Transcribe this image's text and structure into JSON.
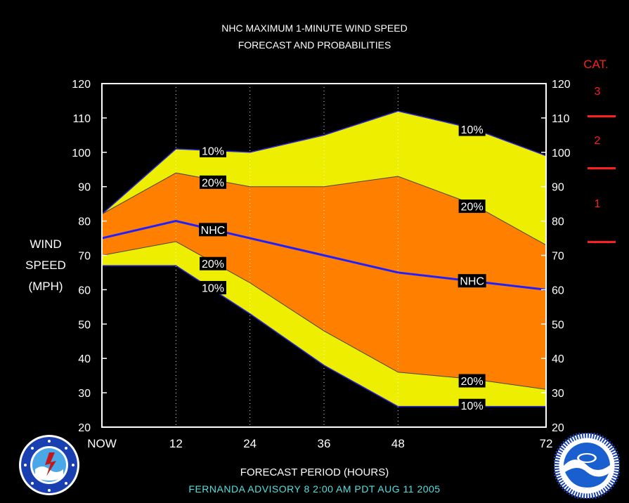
{
  "header": {
    "title": "NHC MAXIMUM 1-MINUTE WIND SPEED",
    "subtitle": "FORECAST AND PROBABILITIES"
  },
  "axes": {
    "ylabel_lines": [
      "WIND",
      "SPEED",
      "(MPH)"
    ],
    "xlabel": "FORECAST PERIOD (HOURS)"
  },
  "footer": {
    "advisory": "FERNANDA   ADVISORY  8 2:00 AM PDT AUG 11 2005"
  },
  "category_key": {
    "title": "CAT.",
    "labels": [
      "3",
      "2",
      "1"
    ],
    "color": "#ff1e1e"
  },
  "logos": [
    "noaa-nws-logo",
    "noaa-logo"
  ],
  "chart_data": {
    "type": "area",
    "title": "NHC MAXIMUM 1-MINUTE WIND SPEED",
    "subtitle": "FORECAST AND PROBABILITIES",
    "xlabel": "FORECAST PERIOD (HOURS)",
    "ylabel": "WIND SPEED (MPH)",
    "x": [
      0,
      12,
      24,
      36,
      48,
      60,
      72
    ],
    "x_tick_labels": [
      "NOW",
      "12",
      "24",
      "36",
      "48",
      "",
      "72"
    ],
    "xlim": [
      0,
      72
    ],
    "ylim": [
      20,
      120
    ],
    "y_ticks": [
      20,
      30,
      40,
      50,
      60,
      70,
      80,
      90,
      100,
      110,
      120
    ],
    "vertical_dotted_gridlines_at": [
      12,
      24,
      36,
      48
    ],
    "series": [
      {
        "name": "10%",
        "values": [
          82,
          101,
          100,
          105,
          112,
          107,
          99
        ],
        "color": "#eeee00"
      },
      {
        "name": "20%",
        "values": [
          82,
          94,
          90,
          90,
          93,
          85,
          73
        ],
        "color": "#ff7f00"
      },
      {
        "name": "NHC",
        "values": [
          75,
          80,
          75,
          70,
          65,
          62.5,
          60
        ],
        "color": "#2020ff"
      },
      {
        "name": "20%",
        "values": [
          70,
          74,
          62,
          48,
          36,
          34,
          31
        ],
        "color": "#ff7f00"
      },
      {
        "name": "10%",
        "values": [
          67,
          67,
          53,
          38,
          26,
          26,
          26
        ],
        "color": "#eeee00"
      }
    ],
    "band_labels": [
      {
        "text": "10%",
        "x": 18,
        "y": 100.5
      },
      {
        "text": "20%",
        "x": 18,
        "y": 91.3
      },
      {
        "text": "NHC",
        "x": 18,
        "y": 77.5
      },
      {
        "text": "20%",
        "x": 18,
        "y": 67.6
      },
      {
        "text": "10%",
        "x": 18,
        "y": 60.6
      },
      {
        "text": "10%",
        "x": 60,
        "y": 106.7
      },
      {
        "text": "20%",
        "x": 60,
        "y": 84.3
      },
      {
        "text": "NHC",
        "x": 60,
        "y": 62.6
      },
      {
        "text": "20%",
        "x": 60,
        "y": 33.5
      },
      {
        "text": "10%",
        "x": 60,
        "y": 26.3
      }
    ],
    "category_thresholds": [
      111,
      96,
      74
    ]
  }
}
